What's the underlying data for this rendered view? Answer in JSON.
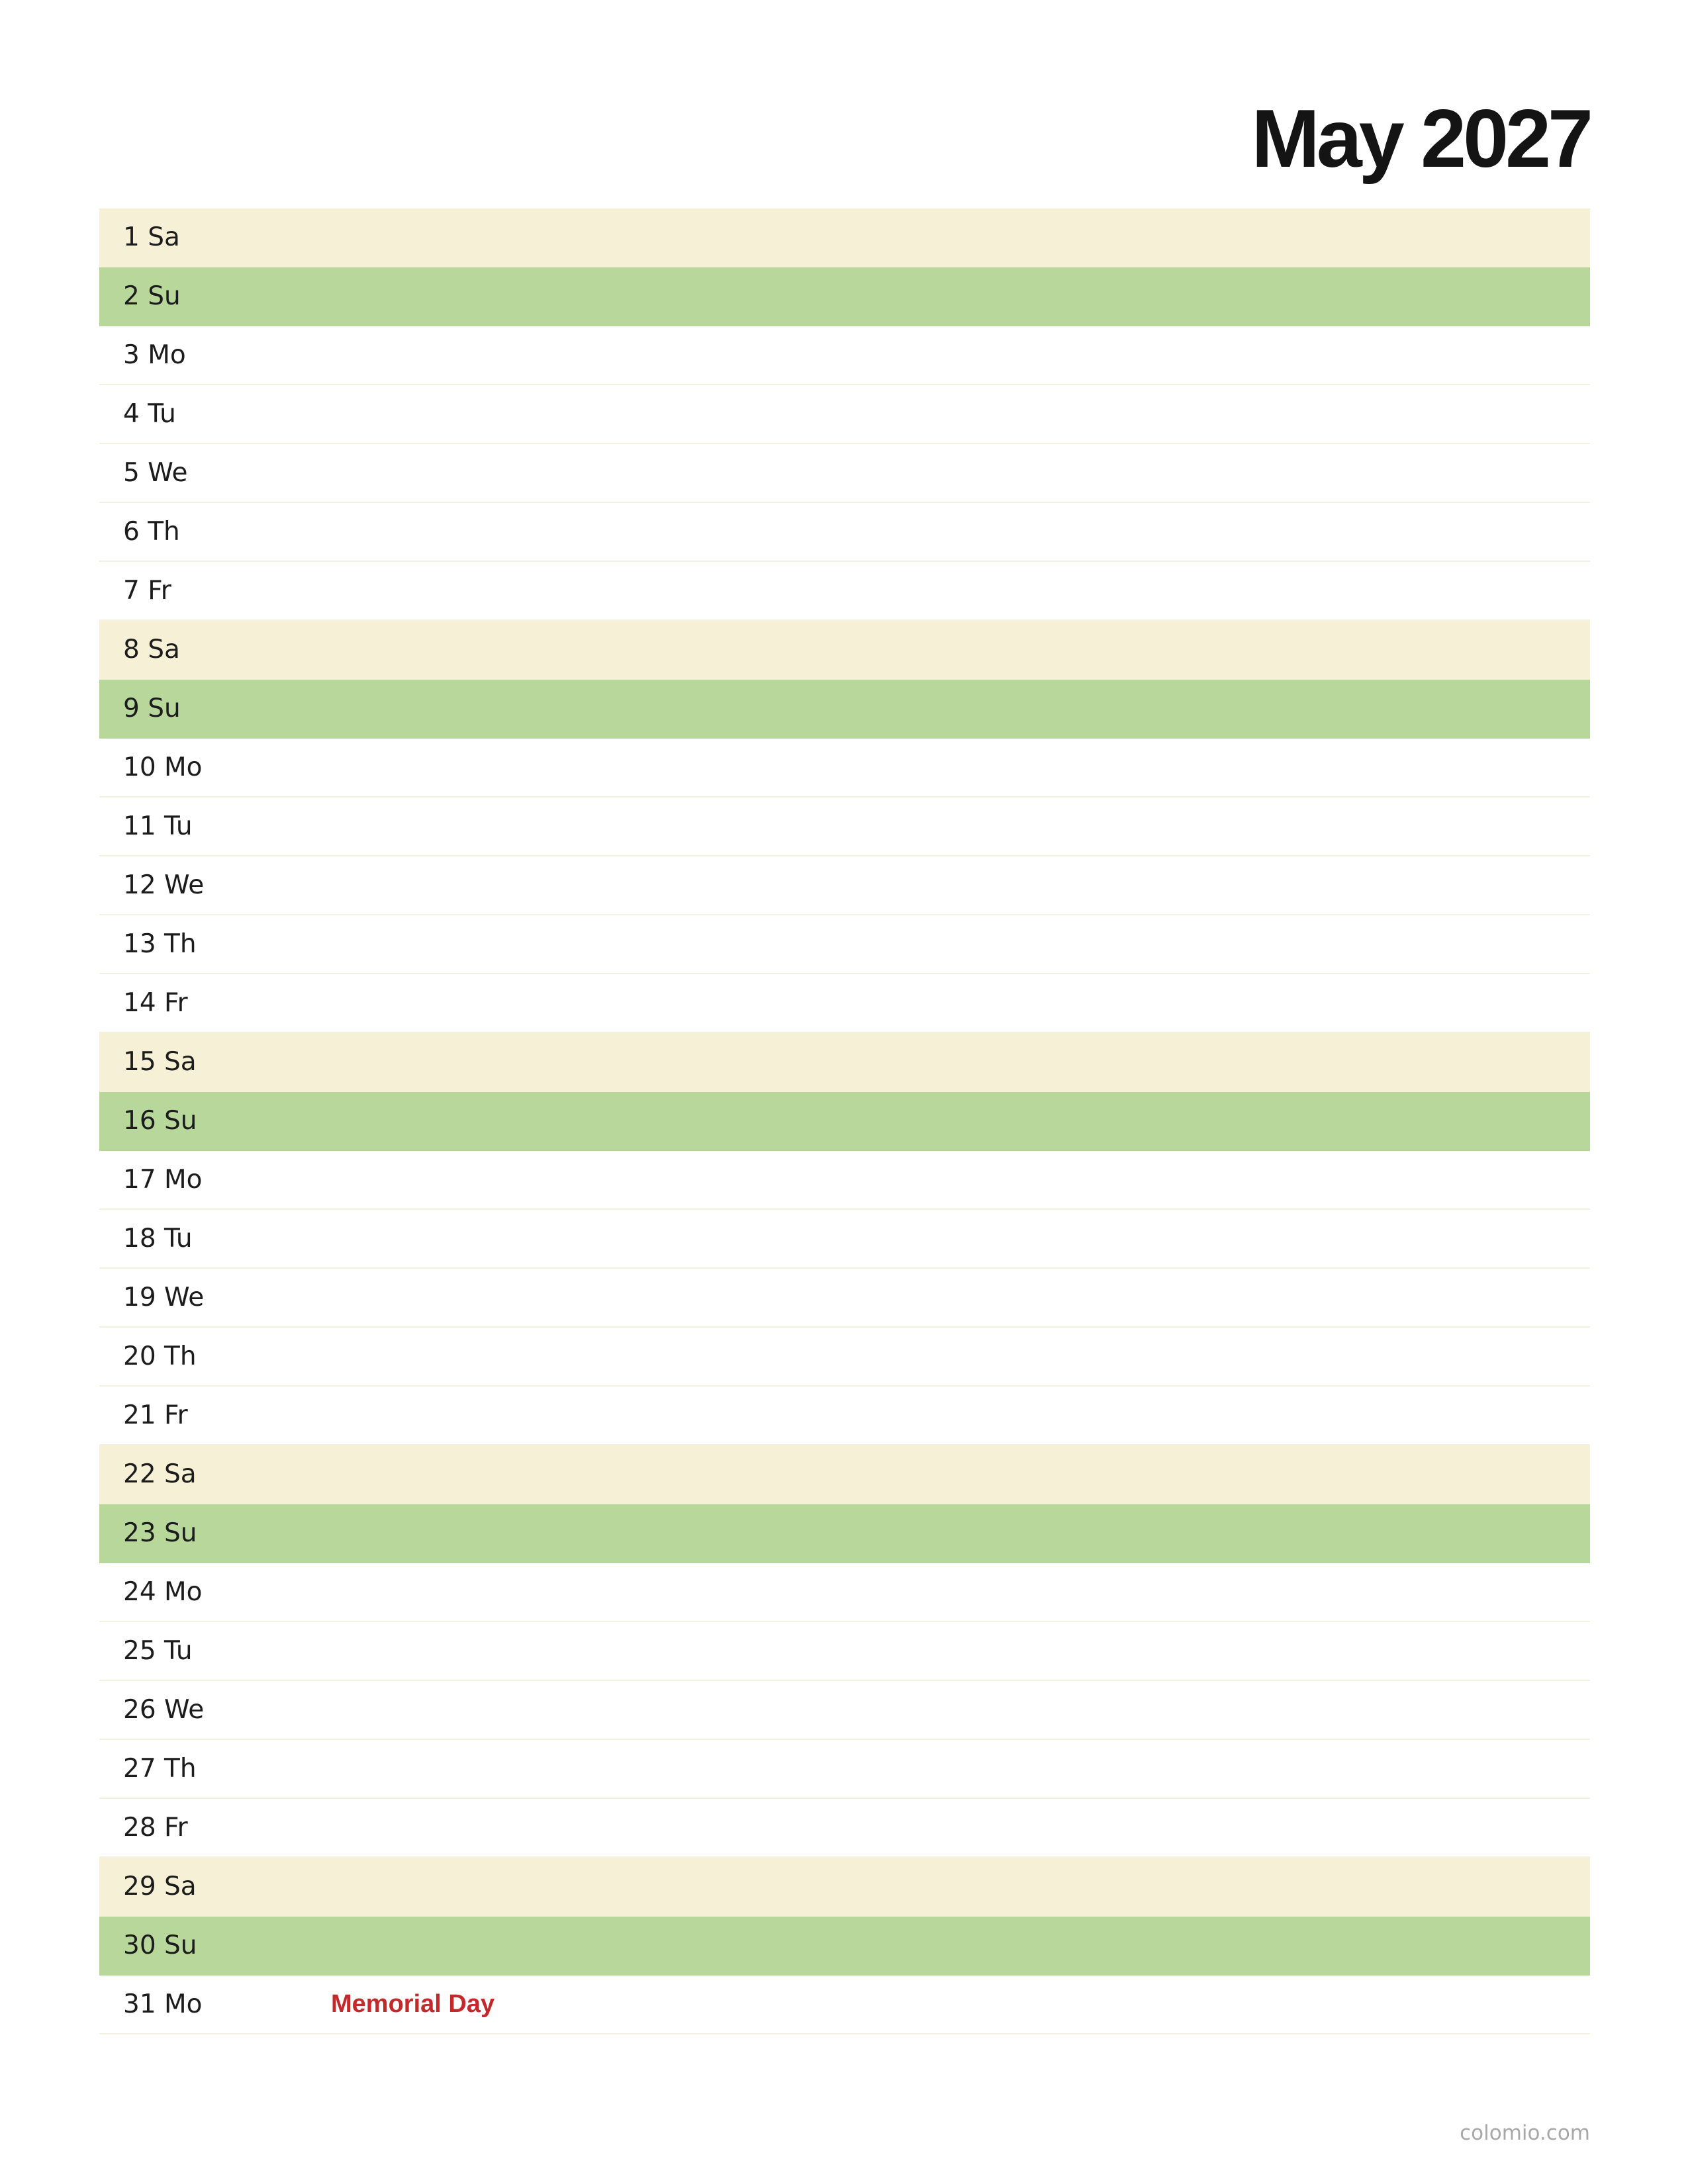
{
  "title": "May 2027",
  "colors": {
    "saturday_row": "#f6f1d6",
    "sunday_row": "#b8d89b",
    "holiday_text": "#c3282b"
  },
  "days": [
    {
      "label": "1 Sa",
      "type": "sat",
      "event": ""
    },
    {
      "label": "2 Su",
      "type": "sun",
      "event": ""
    },
    {
      "label": "3 Mo",
      "type": "weekday",
      "event": ""
    },
    {
      "label": "4 Tu",
      "type": "weekday",
      "event": ""
    },
    {
      "label": "5 We",
      "type": "weekday",
      "event": ""
    },
    {
      "label": "6 Th",
      "type": "weekday",
      "event": ""
    },
    {
      "label": "7 Fr",
      "type": "weekday",
      "event": ""
    },
    {
      "label": "8 Sa",
      "type": "sat",
      "event": ""
    },
    {
      "label": "9 Su",
      "type": "sun",
      "event": ""
    },
    {
      "label": "10 Mo",
      "type": "weekday",
      "event": ""
    },
    {
      "label": "11 Tu",
      "type": "weekday",
      "event": ""
    },
    {
      "label": "12 We",
      "type": "weekday",
      "event": ""
    },
    {
      "label": "13 Th",
      "type": "weekday",
      "event": ""
    },
    {
      "label": "14 Fr",
      "type": "weekday",
      "event": ""
    },
    {
      "label": "15 Sa",
      "type": "sat",
      "event": ""
    },
    {
      "label": "16 Su",
      "type": "sun",
      "event": ""
    },
    {
      "label": "17 Mo",
      "type": "weekday",
      "event": ""
    },
    {
      "label": "18 Tu",
      "type": "weekday",
      "event": ""
    },
    {
      "label": "19 We",
      "type": "weekday",
      "event": ""
    },
    {
      "label": "20 Th",
      "type": "weekday",
      "event": ""
    },
    {
      "label": "21 Fr",
      "type": "weekday",
      "event": ""
    },
    {
      "label": "22 Sa",
      "type": "sat",
      "event": ""
    },
    {
      "label": "23 Su",
      "type": "sun",
      "event": ""
    },
    {
      "label": "24 Mo",
      "type": "weekday",
      "event": ""
    },
    {
      "label": "25 Tu",
      "type": "weekday",
      "event": ""
    },
    {
      "label": "26 We",
      "type": "weekday",
      "event": ""
    },
    {
      "label": "27 Th",
      "type": "weekday",
      "event": ""
    },
    {
      "label": "28 Fr",
      "type": "weekday",
      "event": ""
    },
    {
      "label": "29 Sa",
      "type": "sat",
      "event": ""
    },
    {
      "label": "30 Su",
      "type": "sun",
      "event": ""
    },
    {
      "label": "31 Mo",
      "type": "weekday",
      "event": "Memorial Day"
    }
  ],
  "footer": "colomio.com"
}
